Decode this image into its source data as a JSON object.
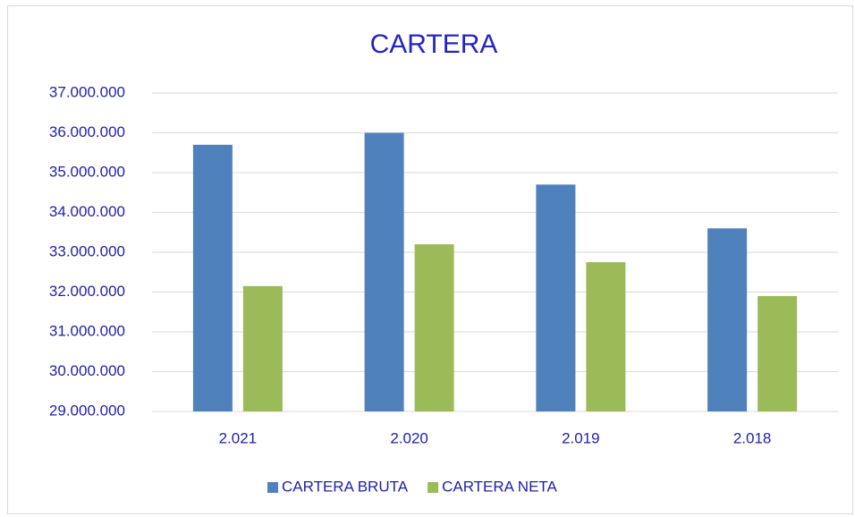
{
  "chart_data": {
    "type": "bar",
    "title": "CARTERA",
    "categories": [
      "2.021",
      "2.020",
      "2.019",
      "2.018"
    ],
    "series": [
      {
        "name": "CARTERA BRUTA",
        "color": "#4f81bd",
        "values": [
          35700000,
          36000000,
          34700000,
          33600000
        ]
      },
      {
        "name": "CARTERA NETA",
        "color": "#9bbb59",
        "values": [
          32150000,
          33200000,
          32750000,
          31900000
        ]
      }
    ],
    "ylim": [
      29000000,
      37000000
    ],
    "yticks": [
      {
        "value": 29000000,
        "label": "29.000.000"
      },
      {
        "value": 30000000,
        "label": "30.000.000"
      },
      {
        "value": 31000000,
        "label": "31.000.000"
      },
      {
        "value": 32000000,
        "label": "32.000.000"
      },
      {
        "value": 33000000,
        "label": "33.000.000"
      },
      {
        "value": 34000000,
        "label": "34.000.000"
      },
      {
        "value": 35000000,
        "label": "35.000.000"
      },
      {
        "value": 36000000,
        "label": "36.000.000"
      },
      {
        "value": 37000000,
        "label": "37.000.000"
      }
    ],
    "grid": true,
    "legend": "bottom"
  }
}
